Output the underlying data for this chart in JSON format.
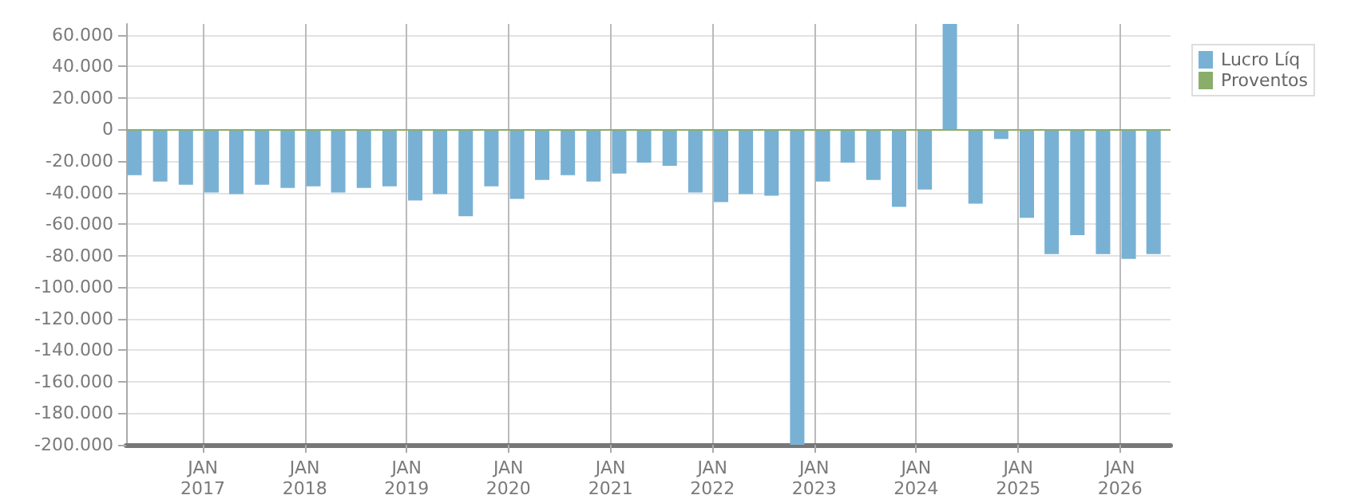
{
  "chart_data": {
    "type": "bar",
    "x": [
      "2016-05",
      "2016-08",
      "2016-11",
      "2017-02",
      "2017-05",
      "2017-08",
      "2017-11",
      "2018-02",
      "2018-05",
      "2018-08",
      "2018-11",
      "2019-02",
      "2019-05",
      "2019-08",
      "2019-11",
      "2020-02",
      "2020-05",
      "2020-08",
      "2020-11",
      "2021-02",
      "2021-05",
      "2021-08",
      "2021-11",
      "2022-02",
      "2022-05",
      "2022-08",
      "2022-11",
      "2023-02",
      "2023-05",
      "2023-08",
      "2023-11",
      "2024-02",
      "2024-05",
      "2024-08",
      "2024-11",
      "2025-02",
      "2025-05",
      "2025-08",
      "2025-11",
      "2026-02",
      "2026-05"
    ],
    "series": [
      {
        "name": "Lucro Líq",
        "color": "#78b1d4",
        "values": [
          -29000,
          -33000,
          -35000,
          -40000,
          -41000,
          -35000,
          -37000,
          -36000,
          -40000,
          -37000,
          -36000,
          -45000,
          -41000,
          -55000,
          -36000,
          -44000,
          -32000,
          -29000,
          -33000,
          -28000,
          -21000,
          -23000,
          -40000,
          -46000,
          -41000,
          -42000,
          -200000,
          -33000,
          -21000,
          -32000,
          -49000,
          -38000,
          67000,
          -47000,
          -6000,
          -56000,
          -79000,
          -67000,
          -79000,
          -82000,
          -79000
        ]
      },
      {
        "name": "Proventos",
        "color": "#8aae6a",
        "values": [
          null,
          null,
          null,
          null,
          null,
          null,
          null,
          null,
          null,
          null,
          null,
          null,
          null,
          null,
          null,
          null,
          null,
          null,
          null,
          null,
          null,
          null,
          null,
          null,
          null,
          null,
          null,
          null,
          null,
          null,
          null,
          null,
          null,
          null,
          null,
          null,
          null,
          null,
          null,
          null,
          null
        ]
      }
    ],
    "xlim": [
      "2016-04",
      "2026-07"
    ],
    "xticks": [
      {
        "value": "2017-01",
        "label": "JAN\n2017"
      },
      {
        "value": "2018-01",
        "label": "JAN\n2018"
      },
      {
        "value": "2019-01",
        "label": "JAN\n2019"
      },
      {
        "value": "2020-01",
        "label": "JAN\n2020"
      },
      {
        "value": "2021-01",
        "label": "JAN\n2021"
      },
      {
        "value": "2022-01",
        "label": "JAN\n2022"
      },
      {
        "value": "2023-01",
        "label": "JAN\n2023"
      },
      {
        "value": "2024-01",
        "label": "JAN\n2024"
      },
      {
        "value": "2025-01",
        "label": "JAN\n2025"
      },
      {
        "value": "2026-01",
        "label": "JAN\n2026"
      }
    ],
    "ylim": [
      -200000,
      67000
    ],
    "yticks": [
      {
        "value": 60000,
        "label": "60.000"
      },
      {
        "value": 40000,
        "label": "40.000"
      },
      {
        "value": 20000,
        "label": "20.000"
      },
      0,
      {
        "value": -20000,
        "label": "-20.000"
      },
      {
        "value": -40000,
        "label": "-40.000"
      },
      {
        "value": -60000,
        "label": "-60.000"
      },
      {
        "value": -80000,
        "label": "-80.000"
      },
      {
        "value": -100000,
        "label": "-100.000"
      },
      {
        "value": -120000,
        "label": "-120.000"
      },
      {
        "value": -140000,
        "label": "-140.000"
      },
      {
        "value": -160000,
        "label": "-160.000"
      },
      {
        "value": -180000,
        "label": "-180.000"
      },
      {
        "value": -200000,
        "label": "-200.000"
      }
    ],
    "ref_lines": [
      {
        "axis": "y",
        "value": 0,
        "color": "#8aae6a"
      }
    ],
    "grid": true,
    "legend": "top right"
  }
}
